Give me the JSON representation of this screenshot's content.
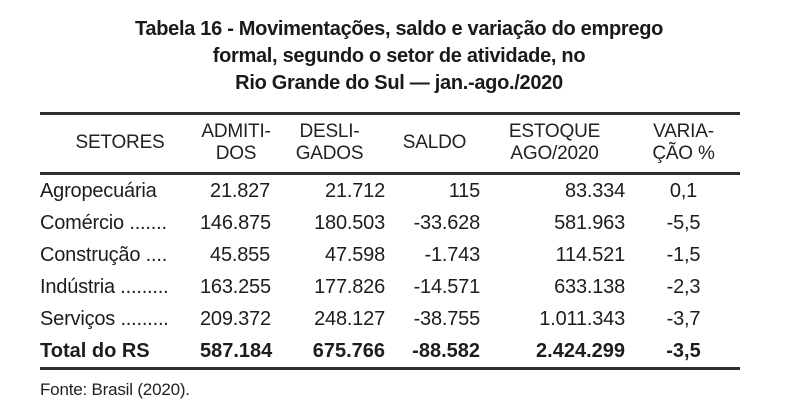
{
  "title": {
    "line1": "Tabela 16 - Movimentações, saldo e variação do emprego",
    "line2": "formal, segundo o setor de atividade, no",
    "line3": "Rio Grande do Sul — jan.-ago./2020"
  },
  "table": {
    "columns": [
      {
        "line1": "SETORES",
        "line2": ""
      },
      {
        "line1": "ADMITI-",
        "line2": "DOS"
      },
      {
        "line1": "DESLI-",
        "line2": "GADOS"
      },
      {
        "line1": "SALDO",
        "line2": ""
      },
      {
        "line1": "ESTOQUE",
        "line2": "AGO/2020"
      },
      {
        "line1": "VARIA-",
        "line2": "ÇÃO %"
      }
    ],
    "rows": [
      {
        "setor": "Agropecuária",
        "admitidos": "21.827",
        "desligados": "21.712",
        "saldo": "115",
        "estoque": "83.334",
        "variacao": "0,1"
      },
      {
        "setor": "Comércio .......",
        "admitidos": "146.875",
        "desligados": "180.503",
        "saldo": "-33.628",
        "estoque": "581.963",
        "variacao": "-5,5"
      },
      {
        "setor": "Construção ....",
        "admitidos": "45.855",
        "desligados": "47.598",
        "saldo": "-1.743",
        "estoque": "114.521",
        "variacao": "-1,5"
      },
      {
        "setor": "Indústria .........",
        "admitidos": "163.255",
        "desligados": "177.826",
        "saldo": "-14.571",
        "estoque": "633.138",
        "variacao": "-2,3"
      },
      {
        "setor": "Serviços .........",
        "admitidos": "209.372",
        "desligados": "248.127",
        "saldo": "-38.755",
        "estoque": "1.011.343",
        "variacao": "-3,7"
      }
    ],
    "total": {
      "setor": "Total do RS",
      "admitidos": "587.184",
      "desligados": "675.766",
      "saldo": "-88.582",
      "estoque": "2.424.299",
      "variacao": "-3,5"
    }
  },
  "footer": {
    "source": "Fonte: Brasil (2020)."
  },
  "colors": {
    "text": "#1d1d1f",
    "rule": "#2e2e2e",
    "background": "#ffffff"
  }
}
